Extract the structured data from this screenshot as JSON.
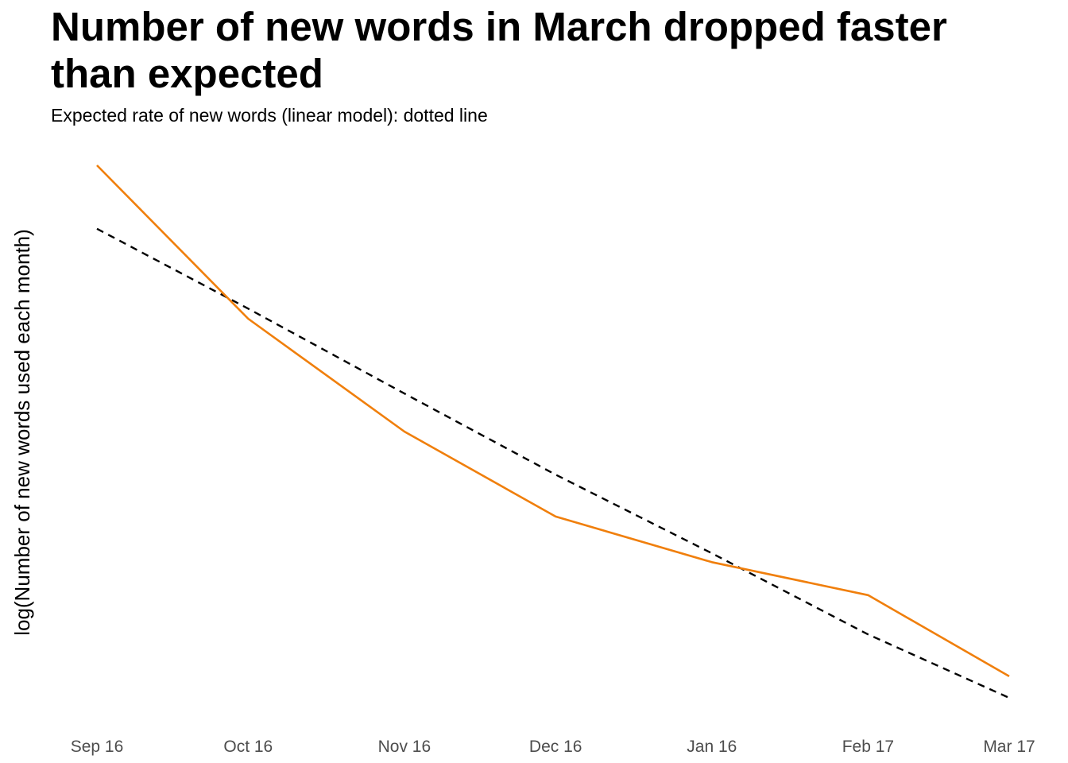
{
  "chart_data": {
    "type": "line",
    "title": "Number of new words in March dropped faster than expected",
    "subtitle": "Expected rate of new words (linear model): dotted line",
    "xlabel": "",
    "ylabel": "log(Number of new words used each month)",
    "categories": [
      "Sep 16",
      "Oct 16",
      "Nov 16",
      "Dec 16",
      "Jan 16",
      "Feb 17",
      "Mar 17"
    ],
    "x": [
      0,
      30,
      61,
      91,
      122,
      153,
      181
    ],
    "series": [
      {
        "style": "solid",
        "color": "#f07f0c",
        "values": [
          9.0,
          7.79,
          6.9,
          6.23,
          5.87,
          5.61,
          4.97
        ]
      },
      {
        "style": "dashed",
        "color": "#000000",
        "values": [
          8.5,
          7.87,
          7.2,
          6.56,
          5.94,
          5.3,
          4.8
        ]
      }
    ],
    "ylim": [
      4.6,
      9.05
    ],
    "grid": false,
    "legend": "none"
  }
}
